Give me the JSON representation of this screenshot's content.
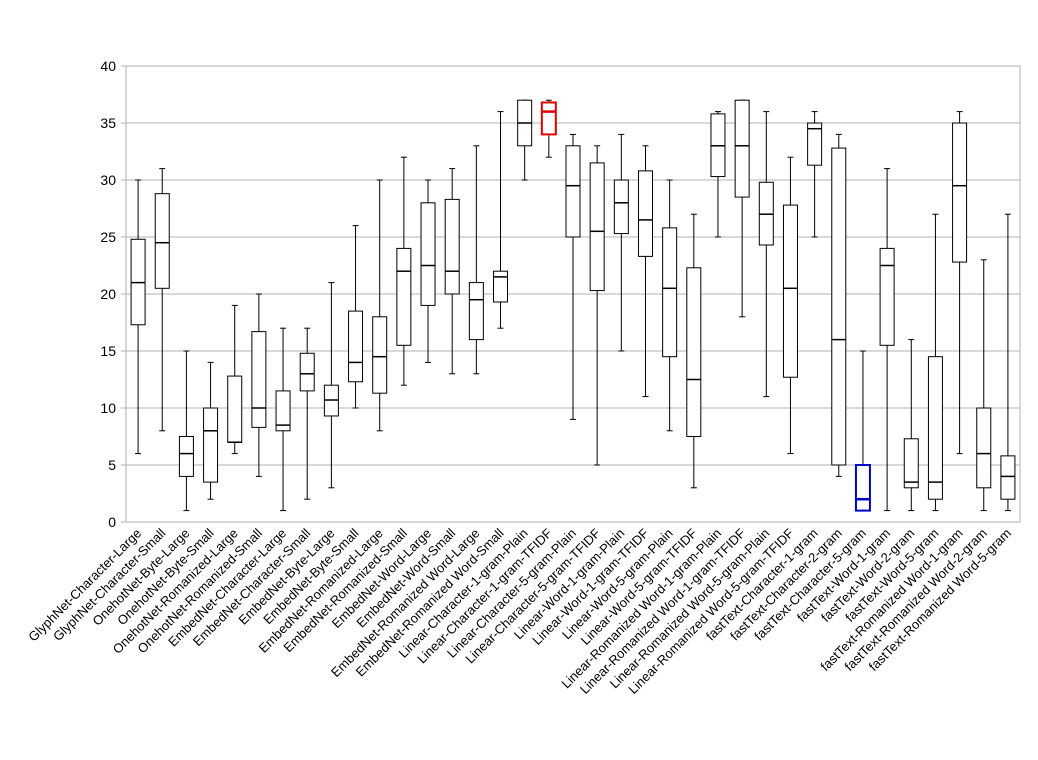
{
  "chart_data": {
    "type": "box",
    "ylim": [
      0,
      40
    ],
    "yticks": [
      0,
      5,
      10,
      15,
      20,
      25,
      30,
      35,
      40
    ],
    "grid": true,
    "categories": [
      "GlyphNet-Character-Large",
      "GlyphNet-Character-Small",
      "OnehotNet-Byte-Large",
      "OnehotNet-Byte-Small",
      "OnehotNet-Romanized-Large",
      "OnehotNet-Romanized-Small",
      "EmbedNet-Character-Large",
      "EmbedNet-Character-Small",
      "EmbedNet-Byte-Large",
      "EmbedNet-Byte-Small",
      "EmbedNet-Romanized-Large",
      "EmbedNet-Romanized-Small",
      "EmbedNet-Word-Large",
      "EmbedNet-Word-Small",
      "EmbedNet-Romanized Word-Large",
      "EmbedNet-Romanized Word-Small",
      "Linear-Character-1-gram-Plain",
      "Linear-Character-1-gram-TFIDF",
      "Linear-Character-5-gram-Plain",
      "Linear-Character-5-gram-TFIDF",
      "Linear-Word-1-gram-Plain",
      "Linear-Word-1-gram-TFIDF",
      "Linear-Word-5-gram-Plain",
      "Linear-Word-5-gram-TFIDF",
      "Linear-Romanized Word-1-gram-Plain",
      "Linear-Romanized Word-1-gram-TFIDF",
      "Linear-Romanized Word-5-gram-Plain",
      "Linear-Romanized Word-5-gram-TFIDF",
      "fastText-Character-1-gram",
      "fastText-Character-2-gram",
      "fastText-Character-5-gram",
      "fastText-Word-1-gram",
      "fastText-Word-2-gram",
      "fastText-Word-5-gram",
      "fastText-Romanized Word-1-gram",
      "fastText-Romanized Word-2-gram",
      "fastText-Romanized Word-5-gram"
    ],
    "boxes": [
      {
        "min": 6,
        "q1": 17.3,
        "median": 21,
        "q3": 24.8,
        "max": 30
      },
      {
        "min": 8,
        "q1": 20.5,
        "median": 24.5,
        "q3": 28.8,
        "max": 31
      },
      {
        "min": 1,
        "q1": 4,
        "median": 6,
        "q3": 7.5,
        "max": 15
      },
      {
        "min": 2,
        "q1": 3.5,
        "median": 8,
        "q3": 10,
        "max": 14
      },
      {
        "min": 6,
        "q1": 7,
        "median": 7,
        "q3": 12.8,
        "max": 19
      },
      {
        "min": 4,
        "q1": 8.3,
        "median": 10,
        "q3": 16.7,
        "max": 20
      },
      {
        "min": 1,
        "q1": 8,
        "median": 8.5,
        "q3": 11.5,
        "max": 17
      },
      {
        "min": 2,
        "q1": 11.5,
        "median": 13,
        "q3": 14.8,
        "max": 17
      },
      {
        "min": 3,
        "q1": 9.3,
        "median": 10.7,
        "q3": 12,
        "max": 21
      },
      {
        "min": 10,
        "q1": 12.3,
        "median": 14,
        "q3": 18.5,
        "max": 26
      },
      {
        "min": 8,
        "q1": 11.3,
        "median": 14.5,
        "q3": 18,
        "max": 30
      },
      {
        "min": 12,
        "q1": 15.5,
        "median": 22,
        "q3": 24,
        "max": 32
      },
      {
        "min": 14,
        "q1": 19,
        "median": 22.5,
        "q3": 28,
        "max": 30
      },
      {
        "min": 13,
        "q1": 20,
        "median": 22,
        "q3": 28.3,
        "max": 31
      },
      {
        "min": 13,
        "q1": 16,
        "median": 19.5,
        "q3": 21,
        "max": 33
      },
      {
        "min": 17,
        "q1": 19.3,
        "median": 21.5,
        "q3": 22,
        "max": 36
      },
      {
        "min": 30,
        "q1": 33,
        "median": 35,
        "q3": 37,
        "max": 37
      },
      {
        "min": 32,
        "q1": 34,
        "median": 36,
        "q3": 36.8,
        "max": 37,
        "color": "#e00000"
      },
      {
        "min": 9,
        "q1": 25,
        "median": 29.5,
        "q3": 33,
        "max": 34
      },
      {
        "min": 5,
        "q1": 20.3,
        "median": 25.5,
        "q3": 31.5,
        "max": 33
      },
      {
        "min": 15,
        "q1": 25.3,
        "median": 28,
        "q3": 30,
        "max": 34
      },
      {
        "min": 11,
        "q1": 23.3,
        "median": 26.5,
        "q3": 30.8,
        "max": 33
      },
      {
        "min": 8,
        "q1": 14.5,
        "median": 20.5,
        "q3": 25.8,
        "max": 30
      },
      {
        "min": 3,
        "q1": 7.5,
        "median": 12.5,
        "q3": 22.3,
        "max": 27
      },
      {
        "min": 25,
        "q1": 30.3,
        "median": 33,
        "q3": 35.8,
        "max": 36
      },
      {
        "min": 18,
        "q1": 28.5,
        "median": 33,
        "q3": 37,
        "max": 37
      },
      {
        "min": 11,
        "q1": 24.3,
        "median": 27,
        "q3": 29.8,
        "max": 36
      },
      {
        "min": 6,
        "q1": 12.7,
        "median": 20.5,
        "q3": 27.8,
        "max": 32
      },
      {
        "min": 25,
        "q1": 31.3,
        "median": 34.5,
        "q3": 35,
        "max": 36
      },
      {
        "min": 4,
        "q1": 5,
        "median": 16,
        "q3": 32.8,
        "max": 34
      },
      {
        "min": 1,
        "q1": 1,
        "median": 2,
        "q3": 5,
        "max": 15,
        "color": "#0000cc"
      },
      {
        "min": 1,
        "q1": 15.5,
        "median": 22.5,
        "q3": 24,
        "max": 31
      },
      {
        "min": 1,
        "q1": 3,
        "median": 3.5,
        "q3": 7.3,
        "max": 16
      },
      {
        "min": 1,
        "q1": 2,
        "median": 3.5,
        "q3": 14.5,
        "max": 27
      },
      {
        "min": 6,
        "q1": 22.8,
        "median": 29.5,
        "q3": 35,
        "max": 36
      },
      {
        "min": 1,
        "q1": 3,
        "median": 6,
        "q3": 10,
        "max": 23
      },
      {
        "min": 1,
        "q1": 2,
        "median": 4,
        "q3": 5.8,
        "max": 27
      }
    ]
  }
}
